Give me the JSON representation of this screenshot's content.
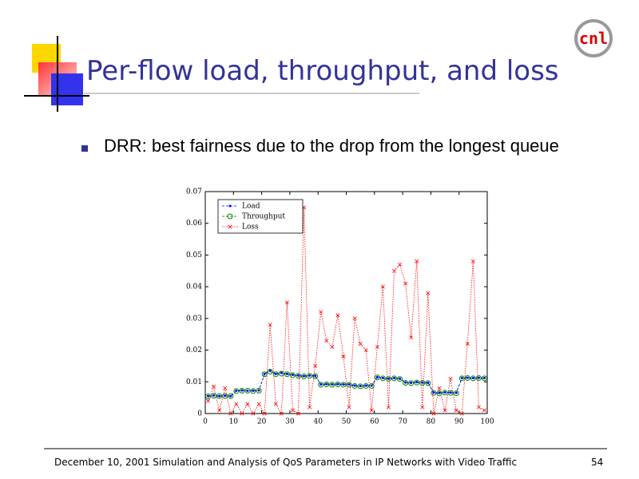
{
  "slide": {
    "title": "Per-flow load, throughput, and loss",
    "bullet": "DRR: best fairness due to the drop from the longest queue",
    "footer": "December 10, 2001 Simulation and Analysis of QoS Parameters in IP Networks with Video Traffic",
    "page": "54",
    "logo": "cnl"
  },
  "chart_data": {
    "type": "line",
    "x": [
      1,
      3,
      5,
      7,
      9,
      11,
      13,
      15,
      17,
      19,
      21,
      23,
      25,
      27,
      29,
      31,
      33,
      35,
      37,
      39,
      41,
      43,
      45,
      47,
      49,
      51,
      53,
      55,
      57,
      59,
      61,
      63,
      65,
      67,
      69,
      71,
      73,
      75,
      77,
      79,
      81,
      83,
      85,
      87,
      89,
      91,
      93,
      95,
      97,
      99
    ],
    "series": [
      {
        "name": "Load",
        "color": "#0000ff",
        "marker": "dot",
        "values": [
          0.0055,
          0.0057,
          0.0055,
          0.0056,
          0.0055,
          0.0072,
          0.0073,
          0.0072,
          0.0072,
          0.0073,
          0.0125,
          0.0135,
          0.0125,
          0.0128,
          0.0125,
          0.0122,
          0.012,
          0.0118,
          0.012,
          0.0119,
          0.0092,
          0.0093,
          0.0092,
          0.0093,
          0.0092,
          0.0092,
          0.0088,
          0.0087,
          0.0088,
          0.0088,
          0.0115,
          0.0112,
          0.011,
          0.0112,
          0.011,
          0.0098,
          0.0097,
          0.0099,
          0.0098,
          0.0097,
          0.0066,
          0.0065,
          0.0067,
          0.0066,
          0.0065,
          0.0112,
          0.0113,
          0.0112,
          0.0113,
          0.0112
        ]
      },
      {
        "name": "Throughput",
        "color": "#008000",
        "marker": "circle",
        "values": [
          0.0054,
          0.0056,
          0.0055,
          0.0055,
          0.0055,
          0.0071,
          0.0072,
          0.0072,
          0.0071,
          0.0072,
          0.0124,
          0.0132,
          0.0124,
          0.0126,
          0.0124,
          0.0121,
          0.0119,
          0.0117,
          0.0119,
          0.0118,
          0.0091,
          0.0092,
          0.0091,
          0.0092,
          0.0091,
          0.0091,
          0.0087,
          0.0086,
          0.0087,
          0.0087,
          0.0114,
          0.0111,
          0.0109,
          0.0111,
          0.0109,
          0.0097,
          0.0096,
          0.0098,
          0.0097,
          0.0096,
          0.0065,
          0.0064,
          0.0066,
          0.0065,
          0.0064,
          0.0111,
          0.0112,
          0.0111,
          0.0112,
          0.0111
        ]
      },
      {
        "name": "Loss",
        "color": "#ff0000",
        "marker": "x",
        "values": [
          0.004,
          0.0085,
          0.001,
          0.008,
          0,
          0.003,
          0,
          0.003,
          0,
          0.003,
          0,
          0.028,
          0.003,
          0,
          0.035,
          0.001,
          0,
          0.065,
          0.002,
          0.015,
          0.032,
          0.023,
          0.021,
          0.031,
          0.018,
          0.002,
          0.03,
          0.022,
          0.02,
          0.001,
          0.021,
          0.04,
          0.002,
          0.045,
          0.047,
          0.041,
          0.024,
          0.048,
          0.002,
          0.038,
          0,
          0.008,
          0.001,
          0.011,
          0.001,
          0,
          0.022,
          0.048,
          0.002,
          0.001
        ]
      }
    ],
    "xlim": [
      0,
      100
    ],
    "xticks": [
      0,
      10,
      20,
      30,
      40,
      50,
      60,
      70,
      80,
      90,
      100
    ],
    "ylim": [
      0,
      0.07
    ],
    "yticks": [
      0,
      0.01,
      0.02,
      0.03,
      0.04,
      0.05,
      0.06,
      0.07
    ],
    "legend": "upper left"
  }
}
